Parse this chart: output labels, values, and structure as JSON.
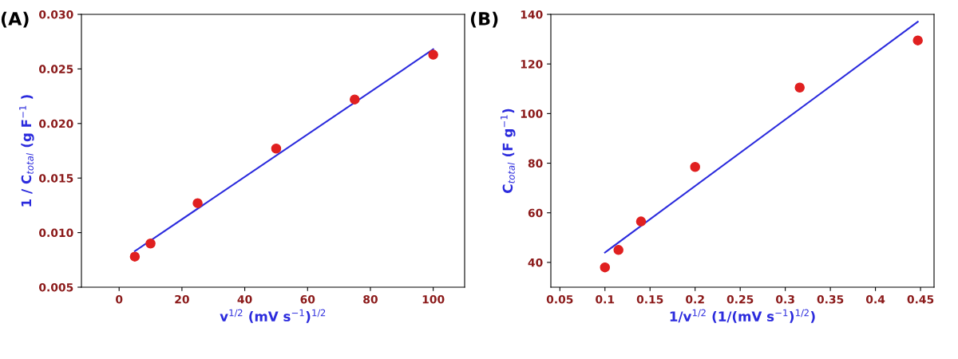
{
  "chart_data": [
    {
      "type": "scatter",
      "title": "(A)",
      "xlabel": "v$^{1/2}$ (mV s$^{−1}$)$^{1/2}$",
      "ylabel": "1 / C$_{total}$ (g F$^{−1}$ )",
      "xlim": [
        -12,
        110
      ],
      "xticks": [
        0,
        20,
        40,
        60,
        80,
        100
      ],
      "ylim": [
        0.005,
        0.03
      ],
      "yticks": [
        {
          "value": 0.005,
          "label": "0.005"
        },
        {
          "value": 0.01,
          "label": "0.010"
        },
        {
          "value": 0.015,
          "label": "0.015"
        },
        {
          "value": 0.02,
          "label": "0.020"
        },
        {
          "value": 0.025,
          "label": "0.025"
        },
        {
          "value": 0.03,
          "label": "0.030"
        }
      ],
      "grid": false,
      "legend": false,
      "series": [
        {
          "marker": "circle",
          "color": "#e02020",
          "x": [
            5,
            10,
            25,
            50,
            75,
            100
          ],
          "values": [
            0.0078,
            0.009,
            0.0127,
            0.0177,
            0.0222,
            0.0263
          ]
        },
        {
          "type": "line",
          "color": "#2b2bdd",
          "x": [
            5,
            100
          ],
          "values": [
            0.0083,
            0.0268
          ]
        }
      ]
    },
    {
      "type": "scatter",
      "title": "(B)",
      "xlabel": "1/v$^{1/2}$ (1/(mV s$^{−1}$)$^{1/2}$)",
      "ylabel": "C$_{total}$ (F g$^{−1}$)",
      "xlim": [
        0.04,
        0.465
      ],
      "xticks": [
        0.05,
        0.1,
        0.15,
        0.2,
        0.25,
        0.3,
        0.35,
        0.4,
        0.45
      ],
      "ylim": [
        30,
        140
      ],
      "yticks": [
        40,
        60,
        80,
        100,
        120,
        140
      ],
      "grid": false,
      "legend": false,
      "series": [
        {
          "marker": "circle",
          "color": "#e02020",
          "x": [
            0.1,
            0.115,
            0.14,
            0.2,
            0.316,
            0.447
          ],
          "values": [
            38,
            45,
            56.5,
            78.5,
            110.5,
            129.5
          ]
        },
        {
          "type": "line",
          "color": "#2b2bdd",
          "x": [
            0.1,
            0.447
          ],
          "values": [
            44,
            137
          ]
        }
      ]
    }
  ]
}
